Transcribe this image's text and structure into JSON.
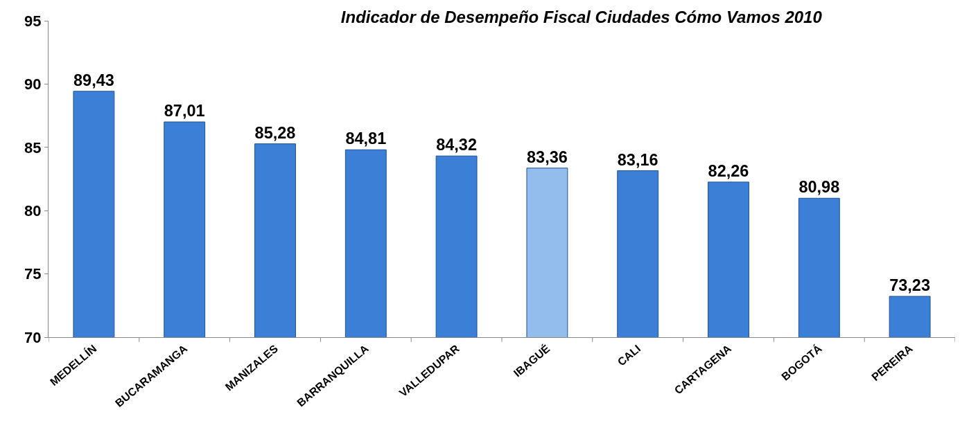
{
  "chart_data": {
    "type": "bar",
    "title": "Indicador de Desempeño Fiscal Ciudades Cómo Vamos 2010",
    "categories": [
      "MEDELLÍN",
      "BUCARAMANGA",
      "MANIZALES",
      "BARRANQUILLA",
      "VALLEDUPAR",
      "IBAGUÉ",
      "CALI",
      "CARTAGENA",
      "BOGOTÁ",
      "PEREIRA"
    ],
    "values": [
      89.43,
      87.01,
      85.28,
      84.81,
      84.32,
      83.36,
      83.16,
      82.26,
      80.98,
      73.23
    ],
    "value_labels": [
      "89,43",
      "87,01",
      "85,28",
      "84,81",
      "84,32",
      "83,36",
      "83,16",
      "82,26",
      "80,98",
      "73,23"
    ],
    "colors": [
      "#3c7fd6",
      "#3c7fd6",
      "#3c7fd6",
      "#3c7fd6",
      "#3c7fd6",
      "#93bdec",
      "#3c7fd6",
      "#3c7fd6",
      "#3c7fd6",
      "#3c7fd6"
    ],
    "ylim": [
      70,
      95
    ],
    "yticks": [
      70,
      75,
      80,
      85,
      90,
      95
    ]
  }
}
